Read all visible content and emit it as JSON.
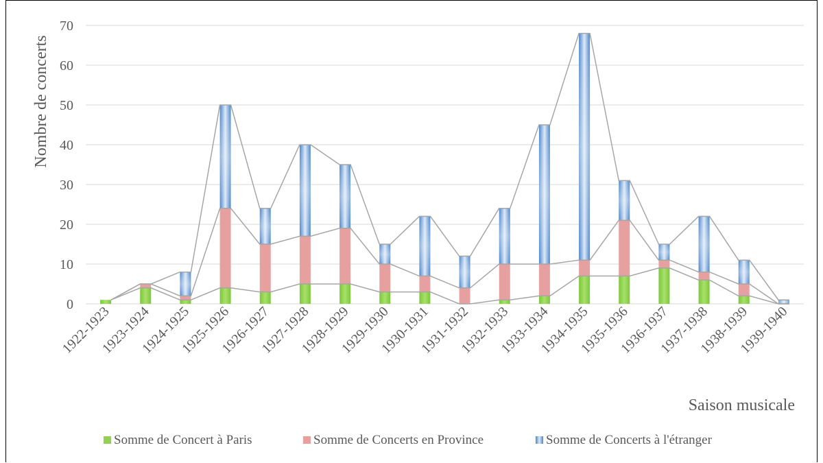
{
  "chart_data": {
    "type": "bar",
    "stacked": true,
    "title": "",
    "xlabel": "Saison musicale",
    "ylabel": "Nombre de concerts",
    "ylim": [
      0,
      70
    ],
    "yticks": [
      0,
      10,
      20,
      30,
      40,
      50,
      60,
      70
    ],
    "grid": true,
    "series_lines": true,
    "legend_position": "bottom",
    "categories": [
      "1922-1923",
      "1923-1924",
      "1924-1925",
      "1925-1926",
      "1926-1927",
      "1927-1928",
      "1928-1929",
      "1929-1930",
      "1930-1931",
      "1931-1932",
      "1932-1933",
      "1933-1934",
      "1934-1935",
      "1935-1936",
      "1936-1937",
      "1937-1938",
      "1938-1939",
      "1939-1940"
    ],
    "series": [
      {
        "name": "Somme de Concert à Paris",
        "color": "#92d050",
        "values": [
          1,
          4,
          1,
          4,
          3,
          5,
          5,
          3,
          3,
          0,
          1,
          2,
          7,
          7,
          9,
          6,
          2,
          0
        ]
      },
      {
        "name": "Somme de Concerts en Province",
        "color": "#e6a0a0",
        "values": [
          0,
          1,
          1,
          20,
          12,
          12,
          14,
          7,
          4,
          4,
          9,
          8,
          4,
          14,
          2,
          2,
          3,
          0
        ]
      },
      {
        "name": "Somme de Concerts à l'étranger",
        "color": "#5b9bd5",
        "values": [
          0,
          0,
          6,
          26,
          9,
          23,
          16,
          5,
          15,
          8,
          14,
          35,
          57,
          10,
          4,
          14,
          6,
          1
        ]
      }
    ]
  }
}
